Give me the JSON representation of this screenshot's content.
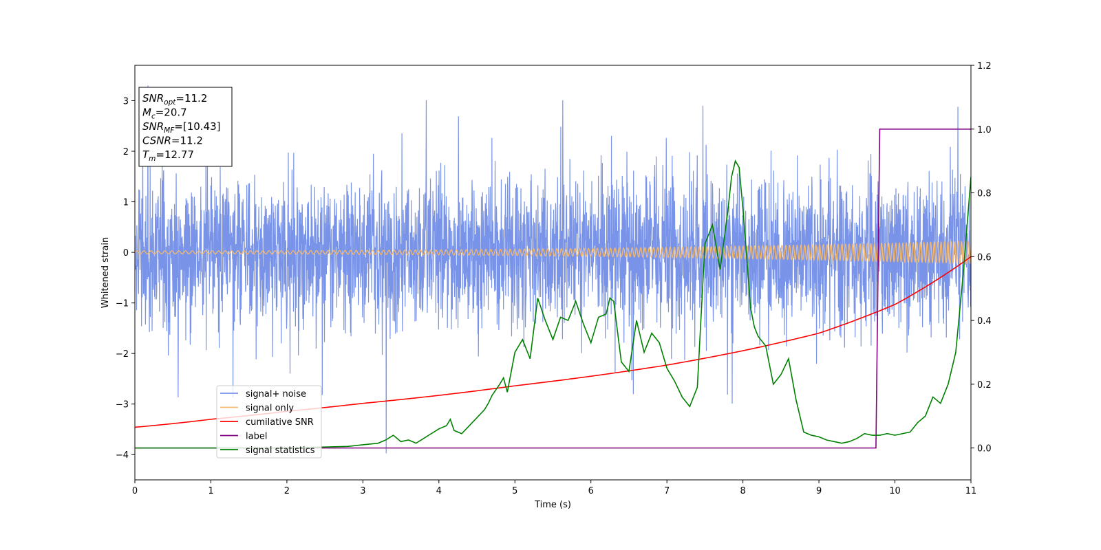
{
  "chart_data": {
    "type": "line",
    "xlabel": "Time (s)",
    "ylabel": "Whitened strain",
    "xlim": [
      0,
      11
    ],
    "ylim_left": [
      -4.5,
      3.7
    ],
    "ylim_right": [
      -0.1,
      1.2
    ],
    "x_ticks": [
      0,
      1,
      2,
      3,
      4,
      5,
      6,
      7,
      8,
      9,
      10,
      11
    ],
    "y_ticks_left": [
      -4,
      -3,
      -2,
      -1,
      0,
      1,
      2,
      3
    ],
    "y_ticks_right": [
      0.0,
      0.2,
      0.4,
      0.6,
      0.8,
      1.0,
      1.2
    ],
    "grid": false,
    "legend_position": "lower-left",
    "annotation": [
      {
        "label": "SNR",
        "sub": "opt",
        "value": "=11.2"
      },
      {
        "label": "M",
        "sub": "c",
        "value": "=20.7"
      },
      {
        "label": "SNR",
        "sub": "MF",
        "value": "=[10.43]"
      },
      {
        "label": "CSNR",
        "sub": "",
        "value": "=11.2"
      },
      {
        "label": "T",
        "sub": "m",
        "value": "=12.77"
      }
    ],
    "series": [
      {
        "name": "signal+ noise",
        "color": "#7893e8",
        "axis": "left",
        "description_envelope": {
          "typical_amplitude": 1.7,
          "max": 3.3,
          "min": -4.15
        }
      },
      {
        "name": "signal only",
        "color": "#f5b96e",
        "axis": "left",
        "amplitude_start": 0.03,
        "amplitude_end": 0.22
      },
      {
        "name": "cumilative SNR",
        "color": "#ff0000",
        "axis": "right",
        "x": [
          0,
          1,
          2,
          3,
          4,
          5,
          6,
          7,
          8,
          9,
          10,
          11
        ],
        "y": [
          0.065,
          0.09,
          0.115,
          0.14,
          0.165,
          0.195,
          0.225,
          0.26,
          0.305,
          0.36,
          0.45,
          0.6
        ]
      },
      {
        "name": "label",
        "color": "#800080",
        "axis": "right",
        "x": [
          0,
          9.75,
          9.8,
          11
        ],
        "y": [
          0,
          0,
          1,
          1
        ]
      },
      {
        "name": "signal statistics",
        "color": "#008000",
        "axis": "right",
        "x": [
          0,
          1,
          2,
          2.8,
          3,
          3.2,
          3.3,
          3.4,
          3.5,
          3.6,
          3.7,
          3.8,
          3.9,
          4.0,
          4.1,
          4.15,
          4.2,
          4.3,
          4.4,
          4.5,
          4.6,
          4.65,
          4.7,
          4.8,
          4.85,
          4.9,
          5.0,
          5.1,
          5.2,
          5.3,
          5.4,
          5.5,
          5.6,
          5.7,
          5.8,
          5.9,
          6.0,
          6.1,
          6.2,
          6.25,
          6.3,
          6.4,
          6.5,
          6.6,
          6.7,
          6.8,
          6.9,
          7.0,
          7.1,
          7.2,
          7.3,
          7.4,
          7.5,
          7.6,
          7.7,
          7.8,
          7.85,
          7.9,
          7.95,
          8.0,
          8.05,
          8.1,
          8.15,
          8.2,
          8.3,
          8.4,
          8.5,
          8.6,
          8.7,
          8.8,
          8.9,
          9.0,
          9.1,
          9.2,
          9.3,
          9.4,
          9.5,
          9.6,
          9.7,
          9.8,
          9.9,
          10.0,
          10.1,
          10.2,
          10.3,
          10.4,
          10.5,
          10.6,
          10.7,
          10.8,
          10.9,
          11.0
        ],
        "y": [
          0.0,
          0.0,
          0.0,
          0.005,
          0.01,
          0.015,
          0.025,
          0.04,
          0.02,
          0.025,
          0.015,
          0.03,
          0.045,
          0.06,
          0.07,
          0.09,
          0.055,
          0.045,
          0.07,
          0.095,
          0.12,
          0.14,
          0.165,
          0.2,
          0.22,
          0.175,
          0.3,
          0.34,
          0.28,
          0.47,
          0.4,
          0.34,
          0.41,
          0.4,
          0.46,
          0.39,
          0.33,
          0.41,
          0.42,
          0.47,
          0.46,
          0.27,
          0.24,
          0.4,
          0.3,
          0.36,
          0.33,
          0.25,
          0.21,
          0.16,
          0.13,
          0.19,
          0.64,
          0.7,
          0.56,
          0.74,
          0.85,
          0.9,
          0.88,
          0.75,
          0.6,
          0.44,
          0.38,
          0.35,
          0.32,
          0.2,
          0.23,
          0.28,
          0.15,
          0.05,
          0.04,
          0.035,
          0.025,
          0.02,
          0.015,
          0.02,
          0.03,
          0.045,
          0.04,
          0.04,
          0.045,
          0.04,
          0.045,
          0.05,
          0.08,
          0.1,
          0.16,
          0.14,
          0.2,
          0.3,
          0.55,
          0.85
        ]
      }
    ]
  }
}
